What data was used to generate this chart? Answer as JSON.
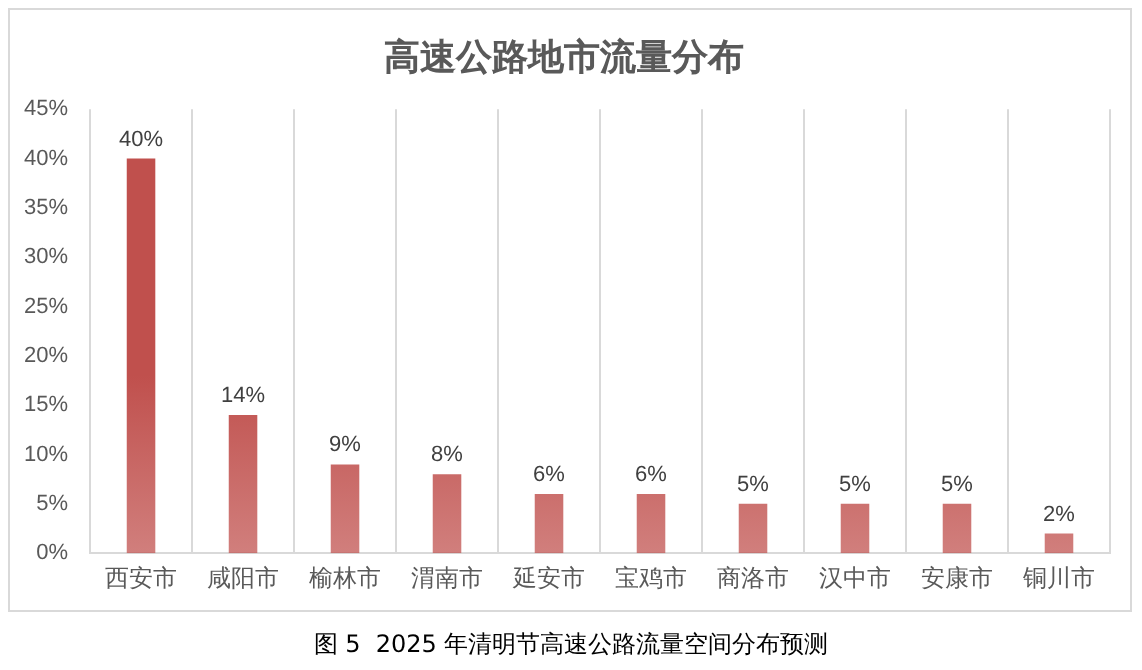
{
  "chart_data": {
    "type": "bar",
    "title": "高速公路地市流量分布",
    "categories": [
      "西安市",
      "咸阳市",
      "榆林市",
      "渭南市",
      "延安市",
      "宝鸡市",
      "商洛市",
      "汉中市",
      "安康市",
      "铜川市"
    ],
    "values": [
      40,
      14,
      9,
      8,
      6,
      6,
      5,
      5,
      5,
      2
    ],
    "value_labels": [
      "40%",
      "14%",
      "9%",
      "8%",
      "6%",
      "6%",
      "5%",
      "5%",
      "5%",
      "2%"
    ],
    "color": "#c0504d",
    "ylim": [
      0,
      45
    ],
    "yticks": [
      {
        "value": 0,
        "label": "0%"
      },
      {
        "value": 5,
        "label": "5%"
      },
      {
        "value": 10,
        "label": "10%"
      },
      {
        "value": 15,
        "label": "15%"
      },
      {
        "value": 20,
        "label": "20%"
      },
      {
        "value": 25,
        "label": "25%"
      },
      {
        "value": 30,
        "label": "30%"
      },
      {
        "value": 35,
        "label": "35%"
      },
      {
        "value": 40,
        "label": "40%"
      },
      {
        "value": 45,
        "label": "45%"
      }
    ],
    "grid": "x",
    "legend": false,
    "annotations": [
      "图 5  2025 年清明节高速公路流量空间分布预测"
    ]
  }
}
